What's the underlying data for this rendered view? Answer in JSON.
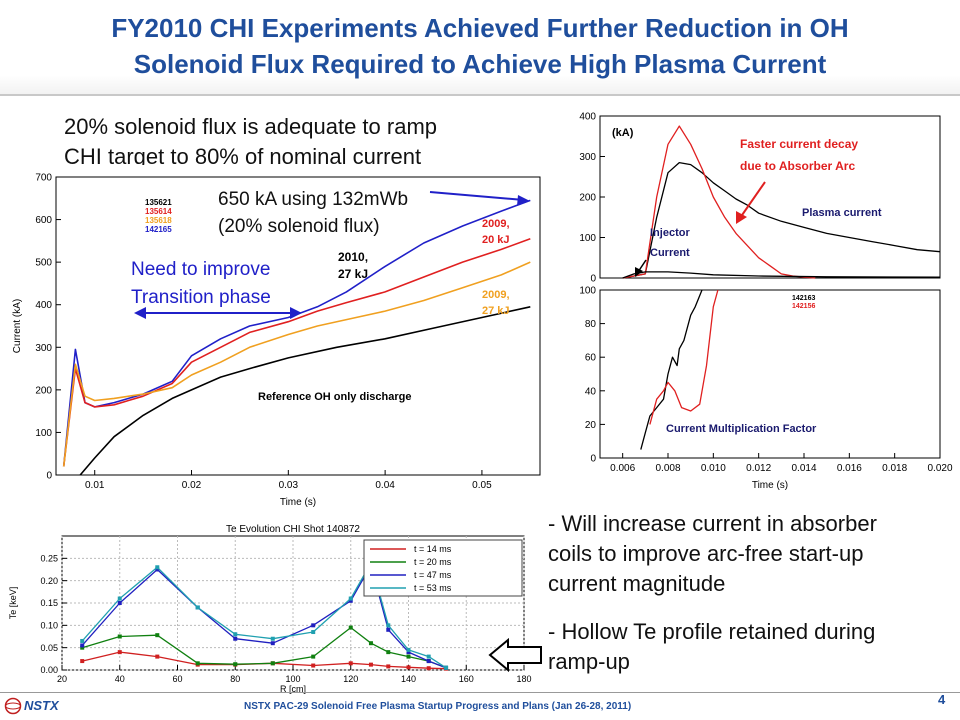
{
  "title": {
    "line1": "FY2010 CHI Experiments Achieved Further Reduction in OH",
    "line2": "Solenoid Flux Required to Achieve High Plasma Current"
  },
  "statement": {
    "line1": "20% solenoid flux is adequate to ramp",
    "line2": "CHI target to 80% of nominal current"
  },
  "bullets": {
    "b1_line1": "- Will increase current in absorber",
    "b1_line2": "coils to improve arc-free start-up",
    "b1_line3": "current magnitude",
    "b2_line1": "- Hollow Te profile retained during",
    "b2_line2": "ramp-up"
  },
  "footer": {
    "logo": "NSTX",
    "text": "NSTX PAC-29  Solenoid Free Plasma Startup Progress and Plans (Jan 26-28, 2011)",
    "page": "4"
  },
  "colors": {
    "title": "#1f4e9c",
    "shot_blue": "#2020c8",
    "shot_red": "#e02020",
    "shot_orange": "#f0a020",
    "black": "#000000"
  },
  "chart_data": [
    {
      "type": "line",
      "xlabel": "Time (s)",
      "ylabel": "Current (kA)",
      "xlim": [
        0.006,
        0.056
      ],
      "ylim": [
        0,
        700
      ],
      "xticks": [
        "0.01",
        "0.02",
        "0.03",
        "0.04",
        "0.05"
      ],
      "xtick_values": [
        0.01,
        0.02,
        0.03,
        0.04,
        0.05
      ],
      "yticks": [
        "0",
        "100",
        "200",
        "300",
        "400",
        "500",
        "600",
        "700"
      ],
      "ytick_values": [
        0,
        100,
        200,
        300,
        400,
        500,
        600,
        700
      ],
      "legend": [
        "135621",
        "135614",
        "135618",
        "142165"
      ],
      "legend_colors": [
        "#000000",
        "#e02020",
        "#f0a020",
        "#2020c8"
      ],
      "series": [
        {
          "name": "142165",
          "color": "#2020c8",
          "x": [
            0.0068,
            0.008,
            0.009,
            0.01,
            0.012,
            0.015,
            0.018,
            0.02,
            0.023,
            0.026,
            0.03,
            0.033,
            0.036,
            0.04,
            0.044,
            0.048,
            0.052,
            0.055
          ],
          "y": [
            20,
            295,
            170,
            160,
            170,
            190,
            220,
            280,
            320,
            350,
            370,
            395,
            430,
            490,
            545,
            585,
            620,
            645
          ]
        },
        {
          "name": "135614",
          "color": "#e02020",
          "x": [
            0.0068,
            0.008,
            0.009,
            0.01,
            0.012,
            0.015,
            0.018,
            0.02,
            0.023,
            0.026,
            0.03,
            0.033,
            0.036,
            0.04,
            0.044,
            0.048,
            0.052,
            0.055
          ],
          "y": [
            20,
            250,
            170,
            160,
            165,
            185,
            215,
            265,
            300,
            335,
            360,
            385,
            405,
            430,
            465,
            500,
            530,
            555
          ]
        },
        {
          "name": "135618",
          "color": "#f0a020",
          "x": [
            0.0068,
            0.008,
            0.009,
            0.01,
            0.012,
            0.015,
            0.018,
            0.02,
            0.023,
            0.026,
            0.03,
            0.033,
            0.036,
            0.04,
            0.044,
            0.048,
            0.052,
            0.055
          ],
          "y": [
            20,
            260,
            185,
            175,
            180,
            190,
            205,
            235,
            265,
            300,
            330,
            350,
            365,
            385,
            410,
            440,
            470,
            500
          ]
        },
        {
          "name": "135621",
          "color": "#000000",
          "x": [
            0.0085,
            0.01,
            0.012,
            0.015,
            0.018,
            0.02,
            0.023,
            0.026,
            0.03,
            0.035,
            0.04,
            0.045,
            0.05,
            0.055
          ],
          "y": [
            0,
            40,
            90,
            140,
            180,
            200,
            230,
            250,
            275,
            300,
            320,
            345,
            370,
            395
          ]
        }
      ],
      "annotations": {
        "flux": "650 kA using 132mWb",
        "flux2": "(20% solenoid flux)",
        "transition": "Need to improve",
        "transition2": "Transition phase",
        "y2010": "2010,",
        "y2010b": "27 kJ",
        "y2009a": "2009,",
        "y2009ab": "20 kJ",
        "y2009b": "2009,",
        "y2009bb": "27 kJ",
        "reference": "Reference OH only discharge"
      }
    },
    {
      "type": "line",
      "ylabel_top": "(kA)",
      "xlim": [
        0.005,
        0.02
      ],
      "ylim": [
        0,
        400
      ],
      "yticks": [
        "0",
        "100",
        "200",
        "300",
        "400"
      ],
      "ytick_values": [
        0,
        100,
        200,
        300,
        400
      ],
      "series": [
        {
          "name": "Plasma current",
          "color": "#000000",
          "x": [
            0.006,
            0.0065,
            0.007,
            0.0075,
            0.008,
            0.0085,
            0.009,
            0.0095,
            0.01,
            0.0105,
            0.011,
            0.0115,
            0.012,
            0.013,
            0.014,
            0.015,
            0.016,
            0.017,
            0.018,
            0.019,
            0.02
          ],
          "y": [
            0,
            5,
            10,
            150,
            260,
            285,
            280,
            260,
            235,
            215,
            195,
            180,
            160,
            140,
            125,
            110,
            100,
            90,
            80,
            70,
            65
          ]
        },
        {
          "name": "Faster current decay",
          "color": "#e02020",
          "x": [
            0.006,
            0.0065,
            0.007,
            0.0075,
            0.008,
            0.0085,
            0.009,
            0.0095,
            0.01,
            0.0105,
            0.011,
            0.0115,
            0.012,
            0.0125,
            0.013,
            0.0135,
            0.014,
            0.0145
          ],
          "y": [
            0,
            5,
            10,
            200,
            330,
            375,
            330,
            270,
            200,
            150,
            110,
            80,
            50,
            30,
            10,
            5,
            2,
            0
          ]
        },
        {
          "name": "Injector Current",
          "color": "#000000",
          "x": [
            0.006,
            0.0065,
            0.007,
            0.008,
            0.009,
            0.01,
            0.012,
            0.015,
            0.02
          ],
          "y": [
            0,
            10,
            15,
            15,
            12,
            8,
            5,
            3,
            2
          ]
        }
      ],
      "annotations": {
        "decay": "Faster current decay",
        "decay2": "due to Absorber Arc",
        "plasma": "Plasma current",
        "injector": "Injector",
        "injector2": "Current"
      }
    },
    {
      "type": "line",
      "xlabel": "Time (s)",
      "xlim": [
        0.005,
        0.02
      ],
      "ylim": [
        0,
        100
      ],
      "xticks": [
        "0.006",
        "0.008",
        "0.010",
        "0.012",
        "0.014",
        "0.016",
        "0.018",
        "0.020"
      ],
      "xtick_values": [
        0.006,
        0.008,
        0.01,
        0.012,
        0.014,
        0.016,
        0.018,
        0.02
      ],
      "yticks": [
        "0",
        "20",
        "40",
        "60",
        "80",
        "100"
      ],
      "ytick_values": [
        0,
        20,
        40,
        60,
        80,
        100
      ],
      "legend": [
        "142163",
        "142156"
      ],
      "legend_colors": [
        "#000000",
        "#e02020"
      ],
      "series": [
        {
          "name": "142163",
          "color": "#000000",
          "x": [
            0.0068,
            0.007,
            0.0072,
            0.0075,
            0.0078,
            0.008,
            0.0082,
            0.0084,
            0.0085,
            0.0087,
            0.009,
            0.0092,
            0.0095
          ],
          "y": [
            5,
            15,
            25,
            30,
            35,
            50,
            60,
            55,
            65,
            70,
            85,
            90,
            100
          ]
        },
        {
          "name": "142156",
          "color": "#e02020",
          "x": [
            0.0072,
            0.0075,
            0.0078,
            0.008,
            0.0083,
            0.0086,
            0.009,
            0.0094,
            0.0097,
            0.01,
            0.0102
          ],
          "y": [
            20,
            35,
            40,
            45,
            40,
            30,
            28,
            32,
            55,
            90,
            100
          ]
        }
      ],
      "annotations": {
        "cmf": "Current Multiplication  Factor"
      }
    },
    {
      "type": "line",
      "title": "Te Evolution CHI Shot 140872",
      "xlabel": "R [cm]",
      "ylabel": "Te [keV]",
      "xlim": [
        20,
        180
      ],
      "ylim": [
        0,
        0.3
      ],
      "xticks": [
        "20",
        "40",
        "60",
        "80",
        "100",
        "120",
        "140",
        "160",
        "180"
      ],
      "xtick_values": [
        20,
        40,
        60,
        80,
        100,
        120,
        140,
        160,
        180
      ],
      "yticks": [
        "0.00",
        "0.05",
        "0.10",
        "0.15",
        "0.20",
        "0.25"
      ],
      "ytick_values": [
        0,
        0.05,
        0.1,
        0.15,
        0.2,
        0.25
      ],
      "series": [
        {
          "name": "t  =  14  ms",
          "color": "#d02020",
          "x": [
            27,
            40,
            53,
            67,
            80,
            93,
            107,
            120,
            127,
            133,
            140,
            147,
            153
          ],
          "y": [
            0.02,
            0.04,
            0.03,
            0.012,
            0.012,
            0.015,
            0.01,
            0.015,
            0.012,
            0.008,
            0.006,
            0.004,
            0.003
          ]
        },
        {
          "name": "t  =  20  ms",
          "color": "#108010",
          "x": [
            27,
            40,
            53,
            67,
            80,
            93,
            107,
            120,
            127,
            133,
            140,
            147,
            153
          ],
          "y": [
            0.05,
            0.075,
            0.078,
            0.015,
            0.013,
            0.015,
            0.03,
            0.095,
            0.06,
            0.04,
            0.03,
            0.02,
            0.005
          ]
        },
        {
          "name": "t  =  47  ms",
          "color": "#2020c0",
          "x": [
            27,
            40,
            53,
            67,
            80,
            93,
            107,
            120,
            127,
            133,
            140,
            147,
            153
          ],
          "y": [
            0.055,
            0.15,
            0.225,
            0.14,
            0.07,
            0.06,
            0.1,
            0.155,
            0.235,
            0.09,
            0.04,
            0.02,
            0.005
          ]
        },
        {
          "name": "t  =  53  ms",
          "color": "#20a0b0",
          "x": [
            27,
            40,
            53,
            67,
            80,
            93,
            107,
            120,
            127,
            133,
            140,
            147,
            153
          ],
          "y": [
            0.065,
            0.16,
            0.23,
            0.14,
            0.08,
            0.07,
            0.085,
            0.16,
            0.24,
            0.1,
            0.045,
            0.03,
            0.005
          ]
        }
      ]
    }
  ]
}
